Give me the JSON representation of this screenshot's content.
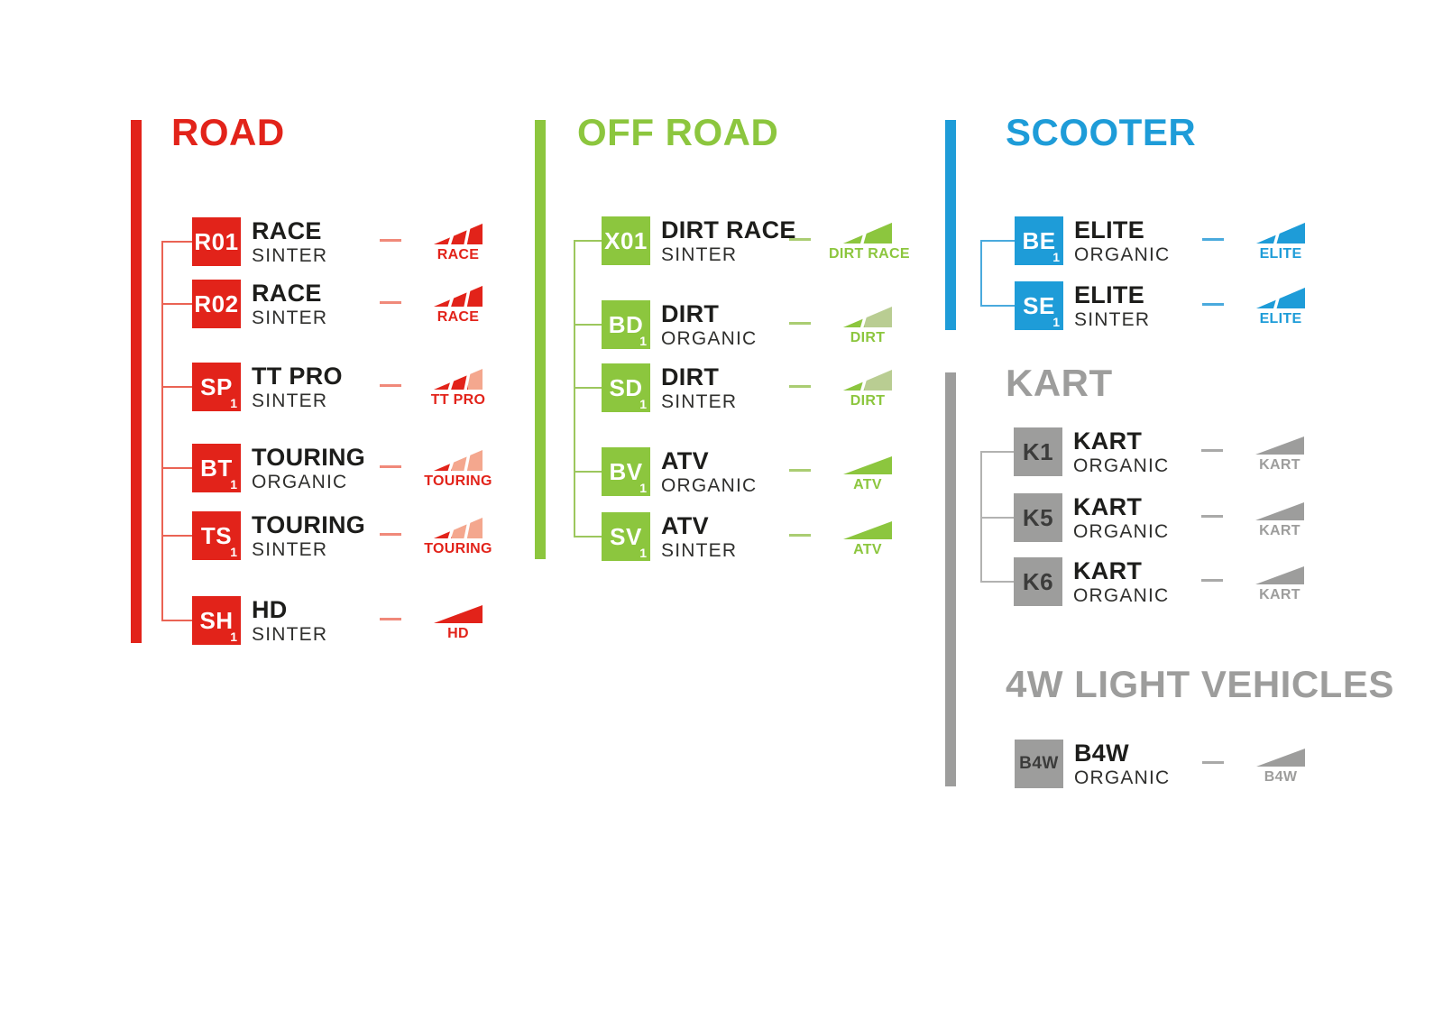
{
  "diagram": {
    "sections": [
      {
        "id": "road",
        "title": "ROAD",
        "color": "#e2231a",
        "light_color": "#f4a78e",
        "dash_color": "#f0897a",
        "line_color": "#ea6354",
        "code_color": "#ffffff",
        "entries": [
          {
            "code": "R01",
            "sub": "",
            "name": "RACE",
            "material": "SINTER",
            "icon": {
              "segments": 3,
              "filled": 3,
              "label": "RACE"
            }
          },
          {
            "code": "R02",
            "sub": "",
            "name": "RACE",
            "material": "SINTER",
            "icon": {
              "segments": 3,
              "filled": 3,
              "label": "RACE"
            }
          },
          {
            "code": "SP",
            "sub": "1",
            "name": "TT PRO",
            "material": "SINTER",
            "icon": {
              "segments": 3,
              "filled": 2,
              "label": "TT PRO"
            }
          },
          {
            "code": "BT",
            "sub": "1",
            "name": "TOURING",
            "material": "ORGANIC",
            "icon": {
              "segments": 3,
              "filled": 1,
              "label": "TOURING"
            }
          },
          {
            "code": "TS",
            "sub": "1",
            "name": "TOURING",
            "material": "SINTER",
            "icon": {
              "segments": 3,
              "filled": 1,
              "label": "TOURING"
            }
          },
          {
            "code": "SH",
            "sub": "1",
            "name": "HD",
            "material": "SINTER",
            "icon": {
              "segments": 1,
              "filled": 1,
              "label": "HD"
            }
          }
        ]
      },
      {
        "id": "offroad",
        "title": "OFF ROAD",
        "color": "#8cc63e",
        "light_color": "#b9cd92",
        "dash_color": "#aacd72",
        "line_color": "#9cc75d",
        "code_color": "#ffffff",
        "entries": [
          {
            "code": "X01",
            "sub": "",
            "name": "DIRT RACE",
            "material": "SINTER",
            "icon": {
              "segments": 2,
              "filled": 2,
              "label": "DIRT RACE"
            }
          },
          {
            "code": "BD",
            "sub": "1",
            "name": "DIRT",
            "material": "ORGANIC",
            "icon": {
              "segments": 2,
              "filled": 1,
              "label": "DIRT"
            }
          },
          {
            "code": "SD",
            "sub": "1",
            "name": "DIRT",
            "material": "SINTER",
            "icon": {
              "segments": 2,
              "filled": 1,
              "label": "DIRT"
            }
          },
          {
            "code": "BV",
            "sub": "1",
            "name": "ATV",
            "material": "ORGANIC",
            "icon": {
              "segments": 1,
              "filled": 1,
              "label": "ATV"
            }
          },
          {
            "code": "SV",
            "sub": "1",
            "name": "ATV",
            "material": "SINTER",
            "icon": {
              "segments": 1,
              "filled": 1,
              "label": "ATV"
            }
          }
        ]
      },
      {
        "id": "scooter",
        "title": "SCOOTER",
        "color": "#1e9cd8",
        "light_color": "#8fcbe9",
        "dash_color": "#4aaadd",
        "line_color": "#4aaadd",
        "code_color": "#ffffff",
        "entries": [
          {
            "code": "BE",
            "sub": "1",
            "name": "ELITE",
            "material": "ORGANIC",
            "icon": {
              "segments": 2,
              "filled": 2,
              "label": "ELITE"
            }
          },
          {
            "code": "SE",
            "sub": "1",
            "name": "ELITE",
            "material": "SINTER",
            "icon": {
              "segments": 2,
              "filled": 2,
              "label": "ELITE"
            }
          }
        ]
      },
      {
        "id": "kart",
        "title": "KART",
        "color": "#9d9d9c",
        "light_color": "#c9c9c8",
        "dash_color": "#a9a9a8",
        "line_color": "#b2b2b1",
        "code_color": "#3c3c3b",
        "entries": [
          {
            "code": "K1",
            "sub": "",
            "name": "KART",
            "material": "ORGANIC",
            "icon": {
              "segments": 1,
              "filled": 1,
              "label": "KART"
            }
          },
          {
            "code": "K5",
            "sub": "",
            "name": "KART",
            "material": "ORGANIC",
            "icon": {
              "segments": 1,
              "filled": 1,
              "label": "KART"
            }
          },
          {
            "code": "K6",
            "sub": "",
            "name": "KART",
            "material": "ORGANIC",
            "icon": {
              "segments": 1,
              "filled": 1,
              "label": "KART"
            }
          }
        ]
      },
      {
        "id": "fourw",
        "title": "4W LIGHT VEHICLES",
        "color": "#9d9d9c",
        "light_color": "#c9c9c8",
        "dash_color": "#a9a9a8",
        "line_color": "#b2b2b1",
        "code_color": "#3c3c3b",
        "entries": [
          {
            "code": "B4W",
            "sub": "",
            "name": "B4W",
            "material": "ORGANIC",
            "icon": {
              "segments": 1,
              "filled": 1,
              "label": "B4W"
            }
          }
        ]
      }
    ]
  }
}
